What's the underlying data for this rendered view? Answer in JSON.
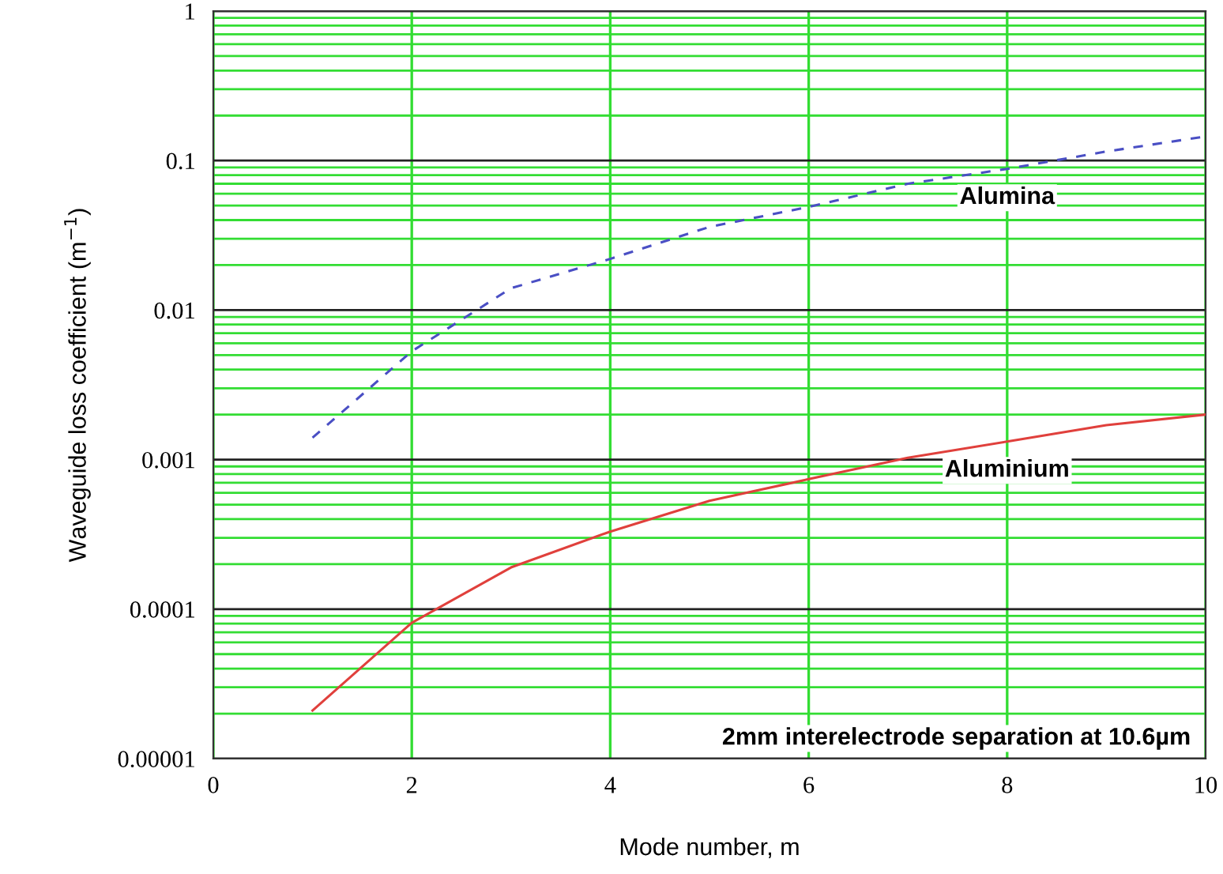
{
  "chart_data": {
    "type": "line",
    "xlabel": "Mode number, m",
    "ylabel": "Waveguide loss coefficient (m$^{−1}$)",
    "x": [
      1,
      2,
      3,
      4,
      5,
      6,
      7,
      8,
      9,
      10
    ],
    "series": [
      {
        "name": "Alumina",
        "color": "#4a4fc4",
        "line_style": "dashed",
        "values": [
          0.0014,
          0.0053,
          0.014,
          0.022,
          0.036,
          0.049,
          0.07,
          0.088,
          0.115,
          0.145
        ]
      },
      {
        "name": "Aluminium",
        "color": "#e0403c",
        "line_style": "solid",
        "values": [
          2.1e-05,
          8.1e-05,
          0.00019,
          0.00033,
          0.00053,
          0.00074,
          0.00103,
          0.00132,
          0.0017,
          0.002
        ]
      }
    ],
    "log": "y",
    "xlim": [
      0,
      10
    ],
    "ylim": [
      1e-05,
      1
    ],
    "xticks": [
      0,
      2,
      4,
      6,
      8,
      10
    ],
    "yticks": [
      {
        "value": 1e-05,
        "label": "0.00001"
      },
      {
        "value": 2e-05,
        "label": null
      },
      {
        "value": 3e-05,
        "label": null
      },
      {
        "value": 4e-05,
        "label": null
      },
      {
        "value": 5e-05,
        "label": null
      },
      {
        "value": 6e-05,
        "label": null
      },
      {
        "value": 7e-05,
        "label": null
      },
      {
        "value": 8e-05,
        "label": null
      },
      {
        "value": 9e-05,
        "label": null
      },
      0.0001,
      {
        "value": 0.0002,
        "label": null
      },
      {
        "value": 0.0003,
        "label": null
      },
      {
        "value": 0.0004,
        "label": null
      },
      {
        "value": 0.0005,
        "label": null
      },
      {
        "value": 0.0006,
        "label": null
      },
      {
        "value": 0.0007,
        "label": null
      },
      {
        "value": 0.0008,
        "label": null
      },
      {
        "value": 0.0009,
        "label": null
      },
      0.001,
      {
        "value": 0.002,
        "label": null
      },
      {
        "value": 0.003,
        "label": null
      },
      {
        "value": 0.004,
        "label": null
      },
      {
        "value": 0.005,
        "label": null
      },
      {
        "value": 0.006,
        "label": null
      },
      {
        "value": 0.007,
        "label": null
      },
      {
        "value": 0.008,
        "label": null
      },
      {
        "value": 0.009,
        "label": null
      },
      0.01,
      {
        "value": 0.02,
        "label": null
      },
      {
        "value": 0.03,
        "label": null
      },
      {
        "value": 0.04,
        "label": null
      },
      {
        "value": 0.05,
        "label": null
      },
      {
        "value": 0.06,
        "label": null
      },
      {
        "value": 0.07,
        "label": null
      },
      {
        "value": 0.08,
        "label": null
      },
      {
        "value": 0.09,
        "label": null
      },
      0.1,
      {
        "value": 0.2,
        "label": null
      },
      {
        "value": 0.3,
        "label": null
      },
      {
        "value": 0.4,
        "label": null
      },
      {
        "value": 0.5,
        "label": null
      },
      {
        "value": 0.6,
        "label": null
      },
      {
        "value": 0.7,
        "label": null
      },
      {
        "value": 0.8,
        "label": null
      },
      {
        "value": 0.9,
        "label": null
      },
      1
    ],
    "grid": true,
    "legend": false,
    "marker": "none",
    "annotations": [
      "2mm interelectrode separation at 10.6µm"
    ]
  }
}
